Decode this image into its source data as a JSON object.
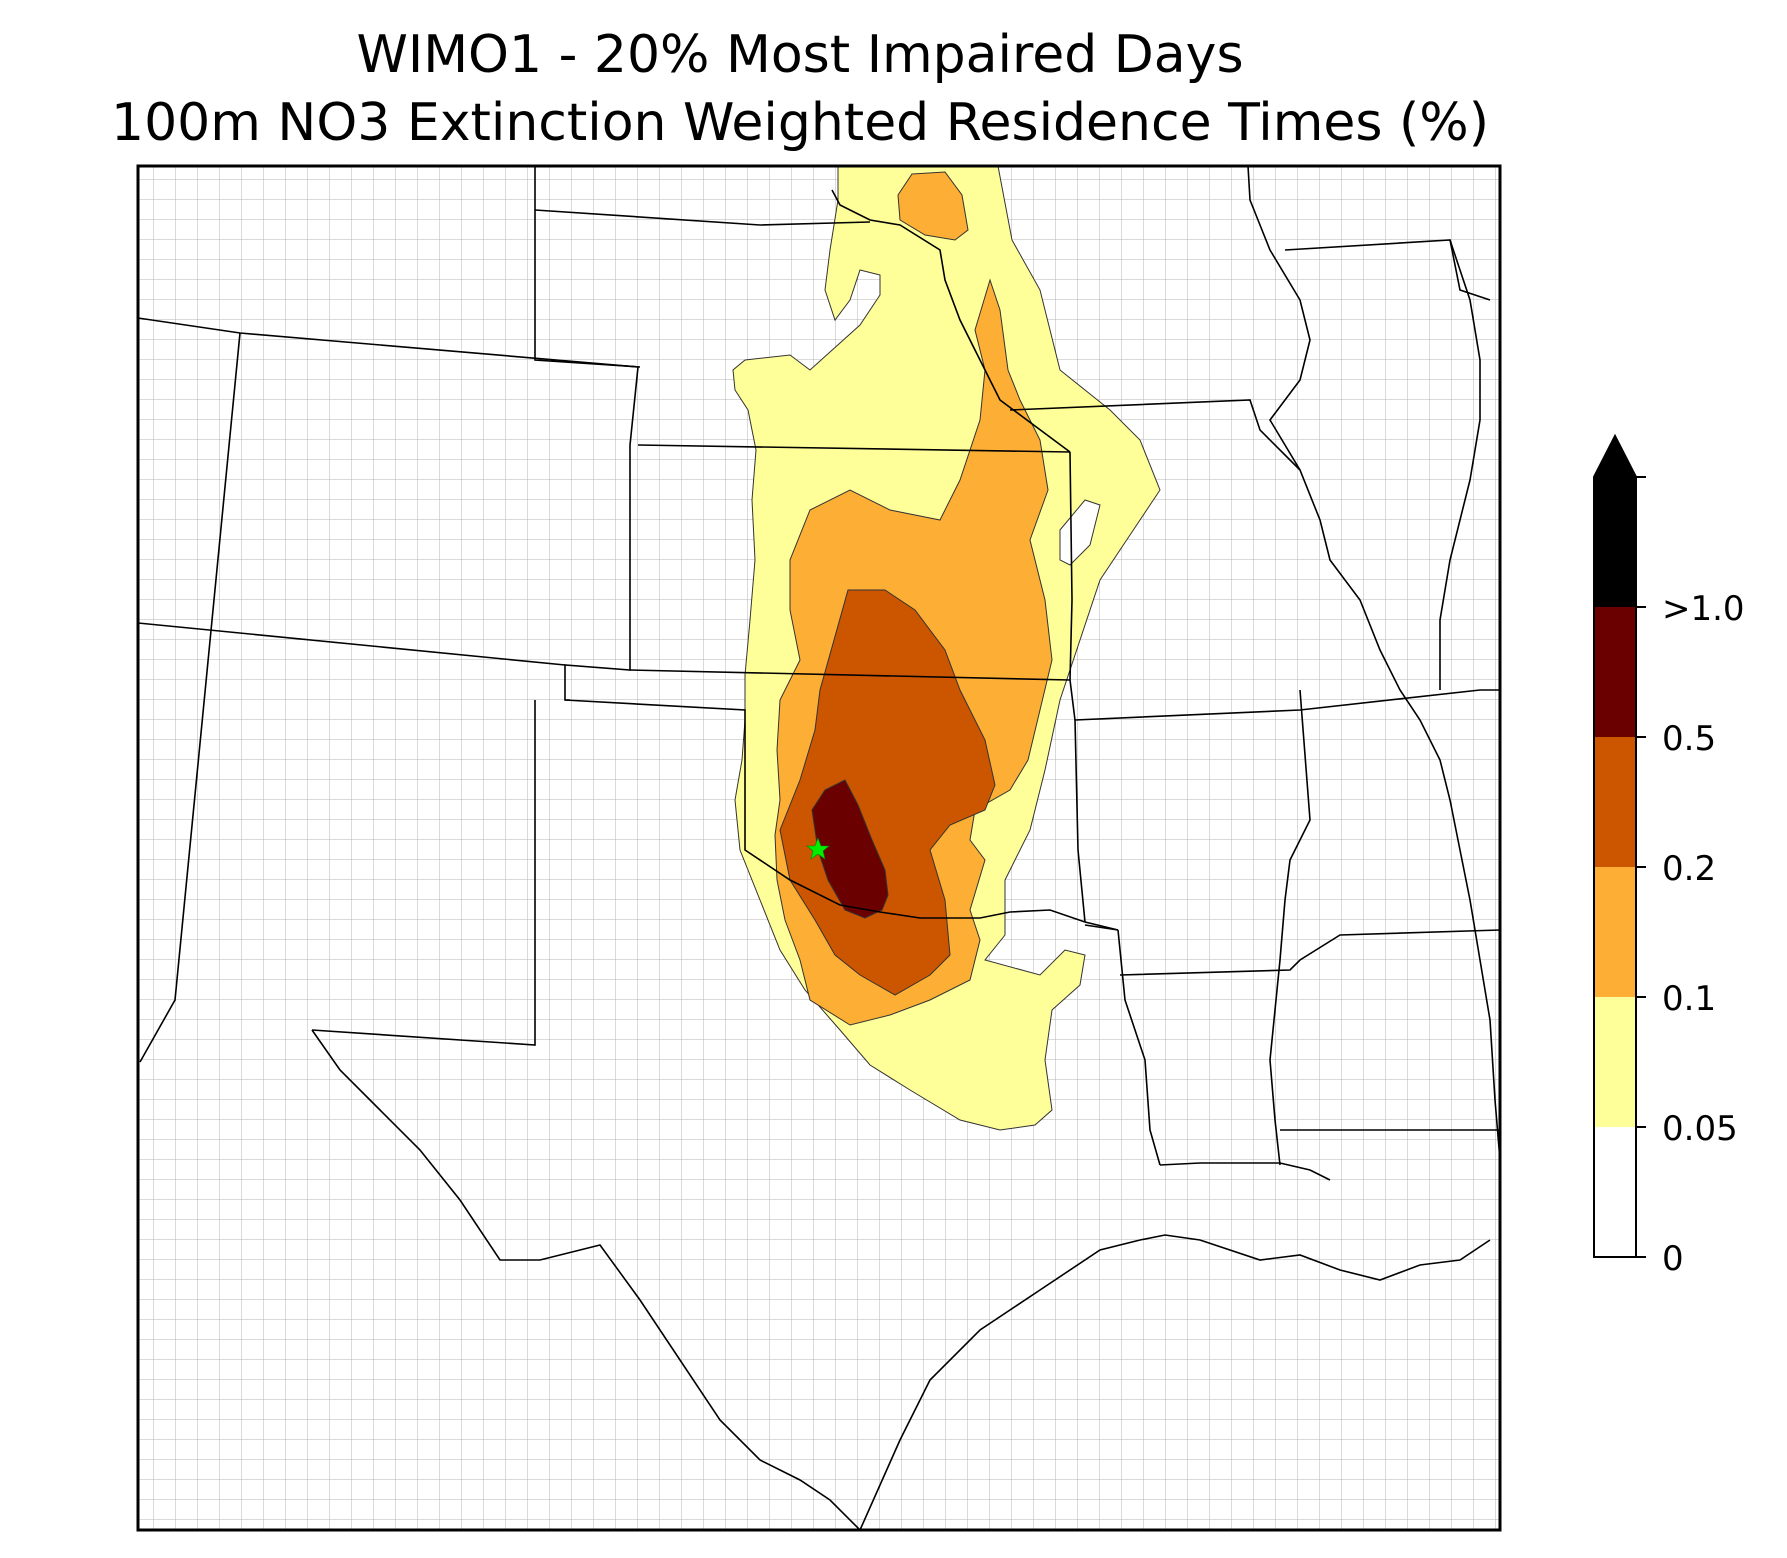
{
  "title": {
    "line1": "WIMO1 - 20% Most Impaired Days",
    "line2": "100m NO3 Extinction Weighted Residence Times (%)"
  },
  "colorbar": {
    "levels": [
      {
        "range": [
          0,
          0.05
        ],
        "color": "#ffffff"
      },
      {
        "range": [
          0.05,
          0.1
        ],
        "color": "#ffff99"
      },
      {
        "range": [
          0.1,
          0.2
        ],
        "color": "#fdae35"
      },
      {
        "range": [
          0.2,
          0.5
        ],
        "color": "#cc5500"
      },
      {
        "range": [
          0.5,
          1.0
        ],
        "color": "#6b0000"
      },
      {
        "range": [
          1.0,
          null
        ],
        "color": "#000000"
      }
    ],
    "tick_labels": [
      "0",
      "0.05",
      "0.1",
      "0.2",
      "0.5",
      ">1.0"
    ],
    "extend": "max"
  },
  "map": {
    "region": "South-central United States",
    "site_marker": {
      "symbol": "star",
      "color": "#00ee00"
    }
  }
}
